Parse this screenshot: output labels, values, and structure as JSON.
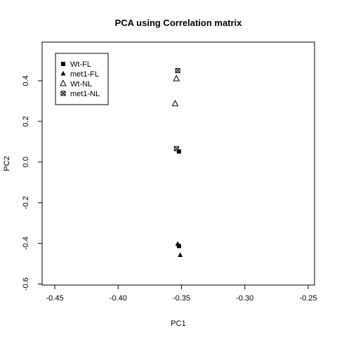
{
  "chart_data": {
    "type": "scatter",
    "title": "PCA using Correlation matrix",
    "xlabel": "PC1",
    "ylabel": "PC2",
    "xlim": [
      -0.46,
      -0.245
    ],
    "ylim": [
      -0.605,
      0.59
    ],
    "x_ticks": [
      -0.45,
      -0.4,
      -0.35,
      -0.3,
      -0.25
    ],
    "x_tick_labels": [
      "-0.45",
      "-0.40",
      "-0.35",
      "-0.30",
      "-0.25"
    ],
    "y_ticks": [
      -0.6,
      -0.4,
      -0.2,
      0.0,
      0.2,
      0.4
    ],
    "y_tick_labels": [
      "-0.6",
      "-0.4",
      "-0.2",
      "0.0",
      "0.2",
      "0.4"
    ],
    "grid": false,
    "legend_position": "top-left",
    "series": [
      {
        "name": "Wt-FL",
        "marker": "filled-square",
        "color": "#000000",
        "points": [
          [
            -0.352,
            0.052
          ],
          [
            -0.352,
            -0.413
          ]
        ]
      },
      {
        "name": "met1-FL",
        "marker": "filled-triangle",
        "color": "#000000",
        "points": [
          [
            -0.353,
            -0.403
          ],
          [
            -0.351,
            -0.458
          ]
        ]
      },
      {
        "name": "Wt-NL",
        "marker": "open-triangle",
        "color": "#000000",
        "points": [
          [
            -0.355,
            0.287
          ],
          [
            -0.354,
            0.41
          ]
        ]
      },
      {
        "name": "met1-NL",
        "marker": "crossed-square",
        "color": "#000000",
        "points": [
          [
            -0.353,
            0.45
          ],
          [
            -0.354,
            0.066
          ]
        ]
      }
    ]
  }
}
